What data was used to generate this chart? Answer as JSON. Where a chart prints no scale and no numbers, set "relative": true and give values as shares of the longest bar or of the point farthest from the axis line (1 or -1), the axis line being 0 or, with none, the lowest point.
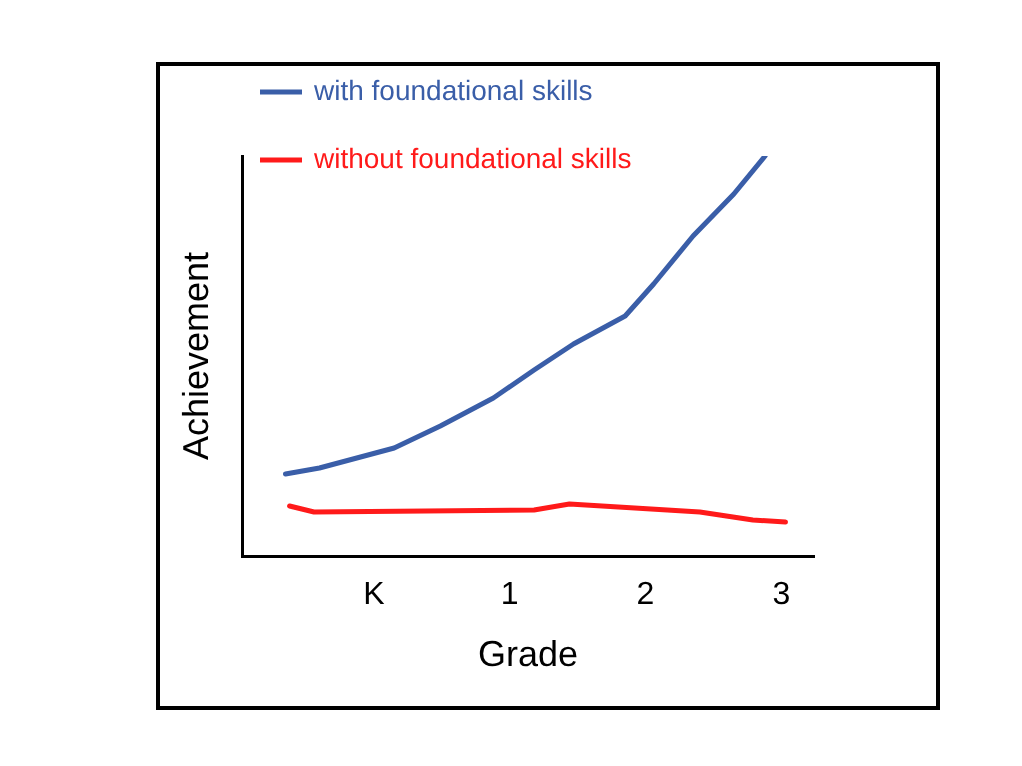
{
  "chart_data": {
    "type": "line",
    "xlabel": "Grade",
    "ylabel": "Achievement",
    "relative": true,
    "legend": "top left",
    "grid": false,
    "marker": "none",
    "line_style": "solid",
    "xlim": [
      -0.97,
      3.24
    ],
    "xticks": [
      {
        "value": 0,
        "label": "K"
      },
      1,
      2,
      3
    ],
    "series": [
      {
        "name": "with foundational skills",
        "color": "#3a5ea8",
        "x": [
          -0.65,
          -0.4,
          0.15,
          0.49,
          0.88,
          1.18,
          1.47,
          1.85,
          2.06,
          2.35,
          2.65,
          2.88
        ],
        "values": [
          0.205,
          0.22,
          0.27,
          0.325,
          0.395,
          0.465,
          0.53,
          0.6,
          0.68,
          0.8,
          0.905,
          1
        ]
      },
      {
        "name": "without foundational skills",
        "color": "#ff1a1a",
        "x": [
          -0.62,
          -0.44,
          1.18,
          1.44,
          2.4,
          2.79,
          3.03
        ],
        "values": [
          0.125,
          0.11,
          0.115,
          0.13,
          0.11,
          0.09,
          0.085
        ]
      }
    ]
  }
}
